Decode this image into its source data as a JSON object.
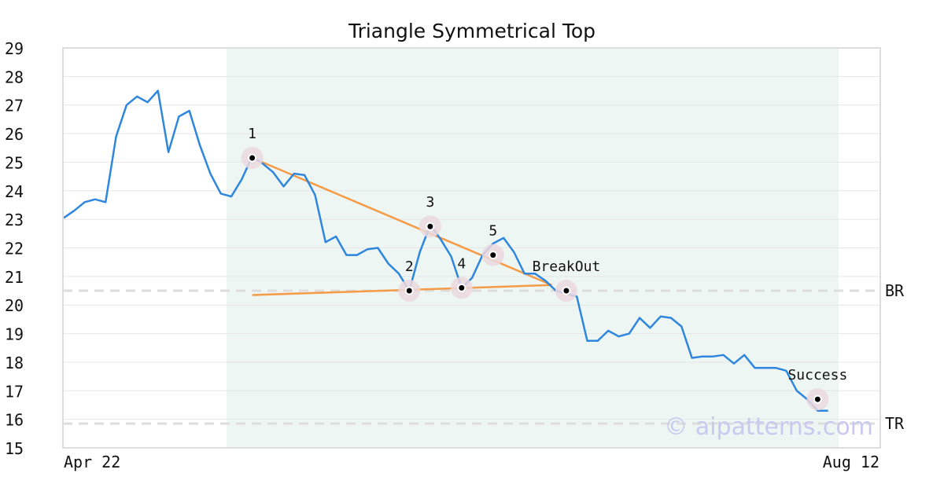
{
  "chart_data": {
    "type": "line",
    "title": "Triangle Symmetrical Top",
    "x_tick_labels": [
      "Apr 22",
      "Aug 12"
    ],
    "ylim": [
      15,
      29
    ],
    "y_ticks": [
      15,
      16,
      17,
      18,
      19,
      20,
      21,
      22,
      23,
      24,
      25,
      26,
      27,
      28,
      29
    ],
    "grid": true,
    "colors": {
      "price": "#2e86de",
      "pattern": "#f59a45",
      "highlight": "#eef6f3",
      "marker_halo": "#ead8de",
      "grid": "#e6e6e6",
      "reference": "#dddddd",
      "watermark": "#c9c9f0"
    },
    "x_index_range": [
      0,
      74
    ],
    "highlight_x_range": [
      16,
      74
    ],
    "series": [
      {
        "values": [
          23.05,
          23.3,
          23.6,
          23.7,
          23.6,
          25.9,
          27.0,
          27.3,
          27.1,
          27.5,
          25.35,
          26.6,
          26.8,
          25.6,
          24.6,
          23.9,
          23.8,
          24.4,
          25.2,
          24.95,
          24.65,
          24.15,
          24.6,
          24.55,
          23.85,
          22.2,
          22.4,
          21.75,
          21.75,
          21.95,
          22.0,
          21.45,
          21.1,
          20.5,
          21.85,
          22.8,
          22.3,
          21.7,
          20.6,
          20.95,
          21.75,
          22.15,
          22.35,
          21.85,
          21.1,
          21.1,
          20.85,
          20.5,
          20.4,
          20.3,
          18.75,
          18.75,
          19.1,
          18.9,
          19.0,
          19.55,
          19.2,
          19.6,
          19.55,
          19.25,
          18.15,
          18.2,
          18.2,
          18.25,
          17.95,
          18.25,
          17.8,
          17.8,
          17.8,
          17.7,
          17.0,
          16.7,
          16.3,
          16.3
        ]
      }
    ],
    "pattern_lines": [
      {
        "from": [
          18,
          25.15
        ],
        "to": [
          46,
          20.7
        ]
      },
      {
        "from": [
          18,
          20.35
        ],
        "to": [
          46,
          20.7
        ]
      }
    ],
    "points": [
      {
        "label": "1",
        "x": 18,
        "y": 25.15
      },
      {
        "label": "2",
        "x": 33,
        "y": 20.5
      },
      {
        "label": "3",
        "x": 35,
        "y": 22.75
      },
      {
        "label": "4",
        "x": 38,
        "y": 20.6
      },
      {
        "label": "5",
        "x": 41,
        "y": 21.75
      },
      {
        "label": "BreakOut",
        "x": 48,
        "y": 20.5
      },
      {
        "label": "Success",
        "x": 72,
        "y": 16.7
      }
    ],
    "reference_lines": [
      {
        "label": "BR",
        "y": 20.5
      },
      {
        "label": "TR",
        "y": 15.85
      }
    ],
    "watermark": "© aipatterns.com"
  }
}
